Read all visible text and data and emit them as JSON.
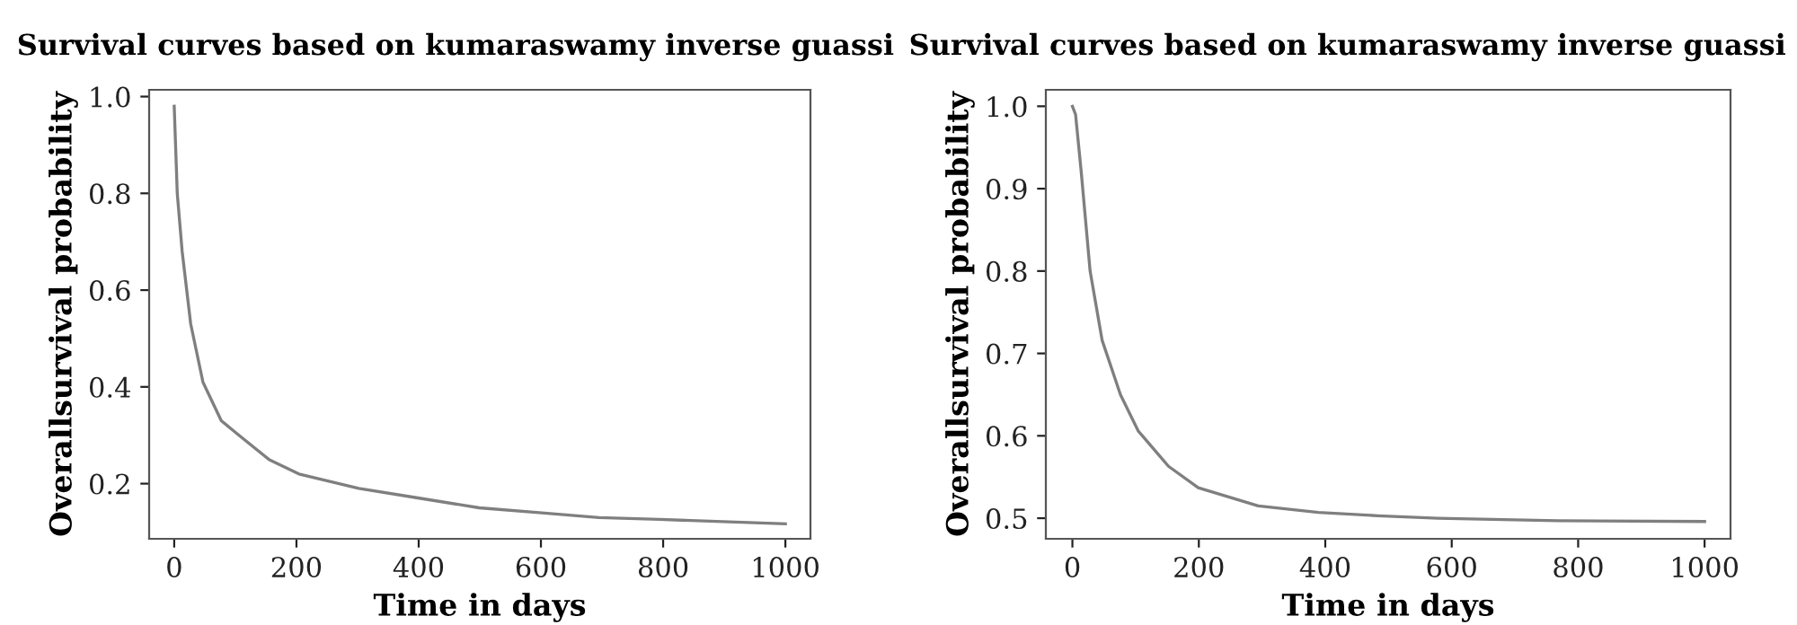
{
  "chart_data": [
    {
      "type": "line",
      "title": "Survival curves based on kumaraswamy inverse guassi",
      "xlabel": "Time in days",
      "ylabel": "Overallsurvival probability",
      "xlim": [
        -41,
        1041
      ],
      "ylim": [
        0.086,
        1.014
      ],
      "xticks": [
        0,
        200,
        400,
        600,
        800,
        1000
      ],
      "yticks": [
        {
          "value": 0.2,
          "label": "0.2"
        },
        {
          "value": 0.4,
          "label": "0.4"
        },
        {
          "value": 0.6,
          "label": "0.6"
        },
        {
          "value": 0.8,
          "label": "0.8"
        },
        {
          "value": 1.0,
          "label": "1.0"
        }
      ],
      "grid": false,
      "legend": false,
      "series": [
        {
          "color": "#7f7f7f",
          "x": [
            0,
            5,
            13,
            27,
            47,
            77,
            106,
            155,
            204,
            302,
            401,
            499,
            597,
            695,
            794,
            1000
          ],
          "values": [
            0.98,
            0.8,
            0.68,
            0.53,
            0.41,
            0.33,
            0.3,
            0.25,
            0.22,
            0.19,
            0.17,
            0.15,
            0.14,
            0.13,
            0.126,
            0.117
          ]
        }
      ]
    },
    {
      "type": "line",
      "title": "Survival curves based on kumaraswamy inverse guassi",
      "xlabel": "Time in days",
      "ylabel": "Overallsurvival probability",
      "xlim": [
        -42,
        1041
      ],
      "ylim": [
        0.475,
        1.02
      ],
      "xticks": [
        0,
        200,
        400,
        600,
        800,
        1000
      ],
      "yticks": [
        {
          "value": 0.5,
          "label": "0.5"
        },
        {
          "value": 0.6,
          "label": "0.6"
        },
        {
          "value": 0.7,
          "label": "0.7"
        },
        {
          "value": 0.8,
          "label": "0.8"
        },
        {
          "value": 0.9,
          "label": "0.9"
        },
        {
          "value": 1.0,
          "label": "1.0"
        }
      ],
      "grid": false,
      "legend": false,
      "series": [
        {
          "color": "#7f7f7f",
          "x": [
            0,
            5,
            14,
            28,
            47,
            76,
            104,
            152,
            199,
            294,
            389,
            483,
            578,
            768,
            1000
          ],
          "values": [
            1.0,
            0.99,
            0.92,
            0.8,
            0.716,
            0.65,
            0.606,
            0.563,
            0.537,
            0.515,
            0.507,
            0.503,
            0.5,
            0.497,
            0.496
          ]
        }
      ]
    }
  ]
}
